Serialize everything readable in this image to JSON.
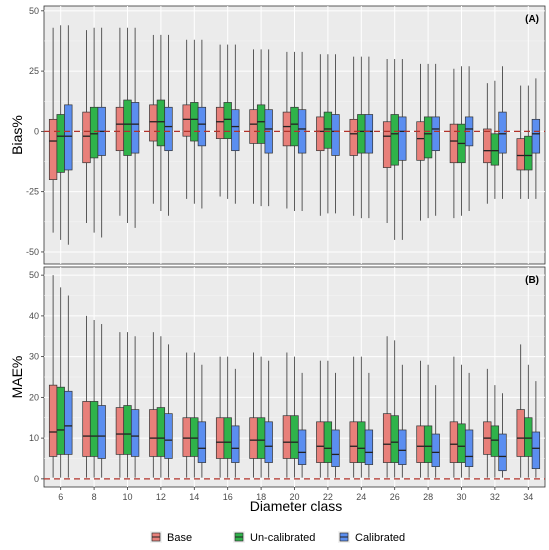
{
  "chart_data": {
    "type": "box",
    "xlabel": "Diameter class",
    "categories": [
      "6",
      "8",
      "10",
      "12",
      "14",
      "16",
      "18",
      "20",
      "22",
      "24",
      "26",
      "28",
      "30",
      "32",
      "34"
    ],
    "legend": {
      "position": "bottom",
      "entries": [
        "Base",
        "Un-calibrated",
        "Calibrated"
      ]
    },
    "colors": {
      "Base": "#e8807a",
      "Un-calibrated": "#2fb34a",
      "Calibrated": "#5b8ef0",
      "reference_line": "#b2332a",
      "panel_bg": "#ebebeb"
    },
    "grid": true,
    "panels": [
      {
        "label": "(A)",
        "ylabel": "Bias%",
        "ylim": [
          -55,
          52
        ],
        "yticks": [
          "50",
          "25",
          "0",
          "-25",
          "-50"
        ],
        "reference_line": 0,
        "series": [
          {
            "name": "Base",
            "boxes": [
              [
                -42,
                -20,
                -4,
                5,
                43
              ],
              [
                -38,
                -13,
                -2,
                8,
                42
              ],
              [
                -35,
                -8,
                3,
                10,
                43
              ],
              [
                -30,
                -4,
                4,
                11,
                40
              ],
              [
                -28,
                -2,
                5,
                11,
                38
              ],
              [
                -27,
                -3,
                4,
                10,
                36
              ],
              [
                -30,
                -5,
                3,
                9,
                34
              ],
              [
                -32,
                -6,
                2,
                8,
                33
              ],
              [
                -35,
                -8,
                0,
                6,
                32
              ],
              [
                -35,
                -10,
                -1,
                5,
                31
              ],
              [
                -38,
                -15,
                -2,
                4,
                30
              ],
              [
                -37,
                -12,
                -3,
                4,
                28
              ],
              [
                -36,
                -13,
                -4,
                3,
                26
              ],
              [
                -30,
                -13,
                -8,
                1,
                20
              ],
              [
                -28,
                -16,
                -10,
                -3,
                19
              ]
            ]
          },
          {
            "name": "Un-calibrated",
            "boxes": [
              [
                -45,
                -17,
                -2,
                7,
                44
              ],
              [
                -42,
                -11,
                -1,
                10,
                43
              ],
              [
                -38,
                -10,
                3,
                13,
                43
              ],
              [
                -33,
                -6,
                4,
                13,
                40
              ],
              [
                -30,
                -4,
                5,
                12,
                38
              ],
              [
                -28,
                -3,
                5,
                12,
                36
              ],
              [
                -31,
                -5,
                4,
                11,
                34
              ],
              [
                -33,
                -6,
                3,
                10,
                33
              ],
              [
                -34,
                -7,
                1,
                8,
                32
              ],
              [
                -36,
                -9,
                0,
                7,
                31
              ],
              [
                -45,
                -14,
                -1,
                7,
                30
              ],
              [
                -36,
                -11,
                -1,
                6,
                28
              ],
              [
                -35,
                -13,
                -5,
                3,
                27
              ],
              [
                -28,
                -14,
                -8,
                -1,
                21
              ],
              [
                -28,
                -16,
                -10,
                -2,
                19
              ]
            ]
          },
          {
            "name": "Calibrated",
            "boxes": [
              [
                -47,
                -16,
                -2,
                11,
                44
              ],
              [
                -44,
                -10,
                0,
                10,
                43
              ],
              [
                -40,
                -9,
                3,
                12,
                43
              ],
              [
                -35,
                -8,
                2,
                10,
                40
              ],
              [
                -32,
                -6,
                3,
                10,
                38
              ],
              [
                -30,
                -8,
                2,
                9,
                36
              ],
              [
                -31,
                -9,
                1,
                9,
                34
              ],
              [
                -33,
                -9,
                1,
                9,
                33
              ],
              [
                -34,
                -10,
                0,
                7,
                32
              ],
              [
                -36,
                -9,
                0,
                7,
                31
              ],
              [
                -45,
                -12,
                0,
                6,
                30
              ],
              [
                -35,
                -8,
                1,
                6,
                28
              ],
              [
                -33,
                -6,
                1,
                6,
                27
              ],
              [
                -28,
                -9,
                -1,
                8,
                27
              ],
              [
                -28,
                -9,
                -1,
                5,
                22
              ]
            ]
          }
        ]
      },
      {
        "label": "(B)",
        "ylabel": "MAE%",
        "ylim": [
          -2,
          52
        ],
        "yticks": [
          "50",
          "40",
          "30",
          "20",
          "10",
          "0"
        ],
        "reference_line": 0,
        "series": [
          {
            "name": "Base",
            "boxes": [
              [
                0.3,
                5.5,
                11.5,
                23,
                50
              ],
              [
                0.3,
                5.5,
                10.5,
                19,
                40
              ],
              [
                0.3,
                6,
                11,
                17.5,
                36
              ],
              [
                0.3,
                5.5,
                10,
                17,
                36
              ],
              [
                0.3,
                5.5,
                10,
                15,
                31
              ],
              [
                0.3,
                5,
                9,
                15,
                30
              ],
              [
                0.3,
                5,
                9.5,
                15,
                31
              ],
              [
                0.3,
                5,
                9,
                15.5,
                31
              ],
              [
                0.3,
                4,
                8,
                14,
                29
              ],
              [
                0.3,
                4,
                8,
                14,
                30
              ],
              [
                0.3,
                4,
                8.5,
                16,
                35
              ],
              [
                0.3,
                4,
                8,
                13,
                29
              ],
              [
                0.3,
                4,
                8.5,
                14,
                30
              ],
              [
                0.3,
                6,
                10,
                14,
                27
              ],
              [
                0.3,
                5.5,
                10,
                17,
                33
              ]
            ]
          },
          {
            "name": "Un-calibrated",
            "boxes": [
              [
                0.3,
                6,
                12,
                22.5,
                47
              ],
              [
                0.3,
                5.5,
                10.5,
                19,
                39
              ],
              [
                0.3,
                6,
                11,
                18,
                36
              ],
              [
                0.3,
                5.5,
                10,
                17.5,
                35
              ],
              [
                0.3,
                5.5,
                10,
                15,
                31
              ],
              [
                0.3,
                5,
                9,
                15,
                30
              ],
              [
                0.3,
                5,
                9.5,
                15,
                30
              ],
              [
                0.3,
                5,
                9,
                15.5,
                30
              ],
              [
                0.3,
                4,
                7.5,
                14,
                29
              ],
              [
                0.3,
                4,
                7.5,
                14,
                30
              ],
              [
                0.3,
                4,
                9,
                15.5,
                34
              ],
              [
                0.3,
                4,
                8,
                13,
                28
              ],
              [
                0.3,
                4,
                8,
                13.5,
                28
              ],
              [
                0.3,
                5.5,
                9.5,
                13,
                23
              ],
              [
                0.3,
                5.5,
                10,
                15,
                28
              ]
            ]
          },
          {
            "name": "Calibrated",
            "boxes": [
              [
                0.3,
                6,
                13,
                21.5,
                45
              ],
              [
                0.3,
                5,
                10.5,
                18,
                38
              ],
              [
                0.3,
                5.5,
                10.5,
                17,
                35
              ],
              [
                0.3,
                5,
                9.5,
                16,
                33
              ],
              [
                0.3,
                4,
                7.5,
                14,
                28
              ],
              [
                0.3,
                4,
                7.5,
                13,
                27
              ],
              [
                0.3,
                4,
                8,
                14,
                29
              ],
              [
                0.3,
                3.5,
                6.5,
                12,
                26
              ],
              [
                0.3,
                3,
                6,
                12,
                26
              ],
              [
                0.3,
                3.5,
                6.5,
                12,
                26
              ],
              [
                0.3,
                3.5,
                7,
                12,
                28
              ],
              [
                0.3,
                3,
                6.5,
                11,
                23
              ],
              [
                0.3,
                3,
                5.5,
                12,
                26
              ],
              [
                0.3,
                2,
                5.5,
                11,
                21
              ],
              [
                0.3,
                2.5,
                7.5,
                11.5,
                24
              ]
            ]
          }
        ]
      }
    ]
  }
}
